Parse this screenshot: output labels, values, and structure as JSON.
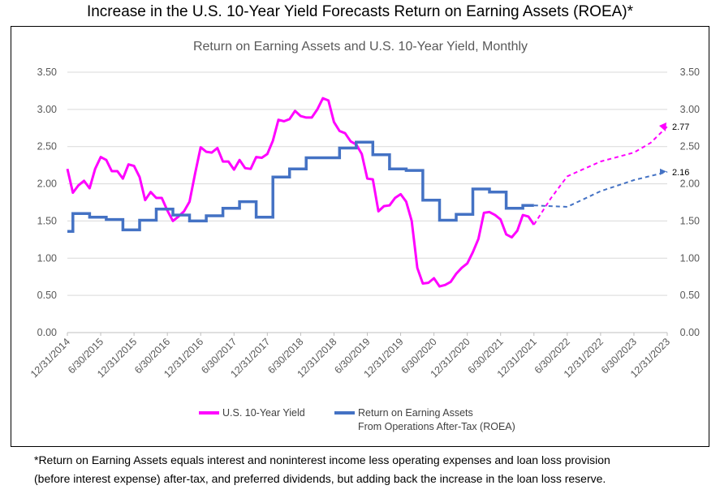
{
  "title": "Increase in the U.S. 10-Year Yield Forecasts Return on Earning Assets (ROEA)*",
  "footnote_line1": "*Return on Earning Assets equals interest and noninterest income less operating expenses and loan loss provision",
  "footnote_line2": "(before interest expense) after-tax, and preferred dividends, but adding back the increase in the loan loss reserve.",
  "colors": {
    "yield": "#ff00ff",
    "roea": "#4472c4",
    "grid": "#d9d9d9",
    "axis_text": "#595959"
  },
  "chart_data": {
    "type": "line",
    "title": "Return on Earning Assets and U.S. 10-Year Yield, Monthly",
    "ylim": [
      0,
      3.5
    ],
    "grid": true,
    "legend_position": "bottom",
    "y_ticks_left": [
      "0.00",
      "0.50",
      "1.00",
      "1.50",
      "2.00",
      "2.50",
      "3.00",
      "3.50"
    ],
    "y_ticks_right": [
      "0.00",
      "0.50",
      "1.00",
      "1.50",
      "2.00",
      "2.50",
      "3.00",
      "3.50"
    ],
    "x_ticks": [
      "12/31/2014",
      "6/30/2015",
      "12/31/2015",
      "6/30/2016",
      "12/31/2016",
      "6/30/2017",
      "12/31/2017",
      "6/30/2018",
      "12/31/2018",
      "6/30/2019",
      "12/31/2019",
      "6/30/2020",
      "12/31/2020",
      "6/30/2021",
      "12/31/2021",
      "6/30/2022",
      "12/31/2022",
      "6/30/2023",
      "12/31/2023"
    ],
    "series": [
      {
        "name": "U.S. 10-Year Yield",
        "start": "2014-12",
        "values": [
          2.2,
          1.88,
          1.98,
          2.04,
          1.94,
          2.2,
          2.36,
          2.32,
          2.17,
          2.17,
          2.07,
          2.26,
          2.24,
          2.09,
          1.78,
          1.89,
          1.81,
          1.81,
          1.64,
          1.5,
          1.56,
          1.63,
          1.76,
          2.14,
          2.49,
          2.43,
          2.42,
          2.48,
          2.3,
          2.3,
          2.19,
          2.32,
          2.21,
          2.2,
          2.36,
          2.35,
          2.4,
          2.58,
          2.86,
          2.84,
          2.87,
          2.98,
          2.91,
          2.89,
          2.89,
          3.0,
          3.15,
          3.12,
          2.83,
          2.71,
          2.68,
          2.57,
          2.53,
          2.4,
          2.07,
          2.06,
          1.63,
          1.7,
          1.71,
          1.81,
          1.86,
          1.76,
          1.5,
          0.87,
          0.66,
          0.67,
          0.73,
          0.62,
          0.64,
          0.68,
          0.79,
          0.87,
          0.93,
          1.08,
          1.26,
          1.61,
          1.62,
          1.58,
          1.52,
          1.32,
          1.28,
          1.37,
          1.58,
          1.56,
          1.45
        ],
        "forecast": [
          {
            "date": "2021-12",
            "value": 1.45
          },
          {
            "date": "2022-03",
            "value": 1.8
          },
          {
            "date": "2022-06",
            "value": 2.1
          },
          {
            "date": "2022-09",
            "value": 2.2
          },
          {
            "date": "2022-12",
            "value": 2.3
          },
          {
            "date": "2023-06",
            "value": 2.42
          },
          {
            "date": "2023-09",
            "value": 2.55
          },
          {
            "date": "2023-12",
            "value": 2.77
          }
        ],
        "end_label": "2.77"
      },
      {
        "name": "Return on Earning Assets From Operations After-Tax (ROEA)",
        "legend_line1": "Return on Earning Assets",
        "legend_line2": "From Operations After-Tax (ROEA)",
        "quarters": [
          "2014Q4",
          "2015Q1",
          "2015Q2",
          "2015Q3",
          "2015Q4",
          "2016Q1",
          "2016Q2",
          "2016Q3",
          "2016Q4",
          "2017Q1",
          "2017Q2",
          "2017Q3",
          "2017Q4",
          "2018Q1",
          "2018Q2",
          "2018Q3",
          "2018Q4",
          "2019Q1",
          "2019Q2",
          "2019Q3",
          "2019Q4",
          "2020Q1",
          "2020Q2",
          "2020Q3",
          "2020Q4",
          "2021Q1",
          "2021Q2",
          "2021Q3",
          "2021Q4"
        ],
        "values": [
          1.36,
          1.6,
          1.55,
          1.52,
          1.38,
          1.51,
          1.66,
          1.58,
          1.5,
          1.57,
          1.67,
          1.76,
          1.55,
          2.09,
          2.2,
          2.35,
          2.35,
          2.48,
          2.56,
          2.39,
          2.2,
          2.18,
          1.78,
          1.51,
          1.59,
          1.93,
          1.89,
          1.67,
          1.71
        ],
        "forecast": [
          {
            "date": "2021-12",
            "value": 1.71
          },
          {
            "date": "2022-06",
            "value": 1.69
          },
          {
            "date": "2022-12",
            "value": 1.9
          },
          {
            "date": "2023-06",
            "value": 2.05
          },
          {
            "date": "2023-12",
            "value": 2.16
          }
        ],
        "end_label": "2.16"
      }
    ]
  }
}
